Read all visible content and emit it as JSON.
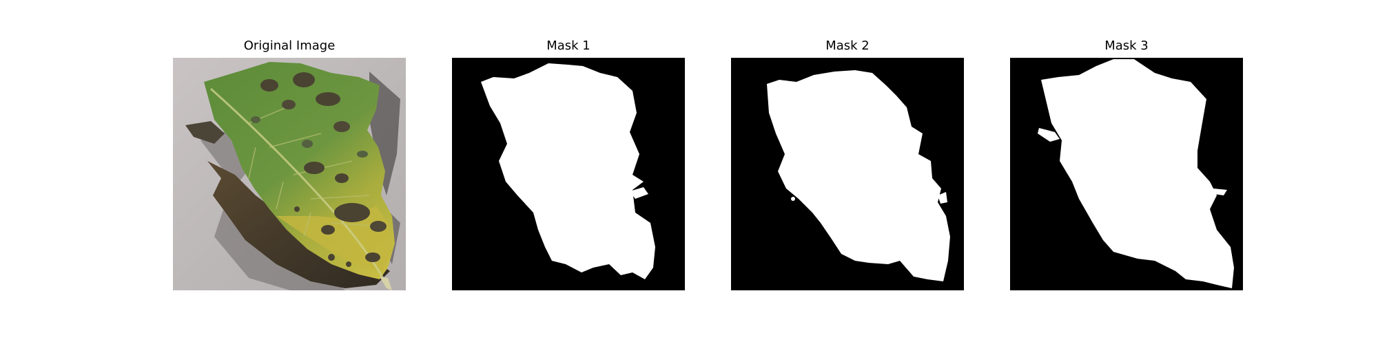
{
  "figure": {
    "panels": [
      {
        "title": "Original Image",
        "kind": "photo",
        "subject": "leaf-photo"
      },
      {
        "title": "Mask 1",
        "kind": "mask",
        "subject": "segmentation-mask"
      },
      {
        "title": "Mask 2",
        "kind": "mask",
        "subject": "segmentation-mask"
      },
      {
        "title": "Mask 3",
        "kind": "mask",
        "subject": "segmentation-mask"
      }
    ],
    "colors": {
      "background": "#ffffff",
      "mask_background": "#000000",
      "mask_foreground": "#ffffff",
      "leaf_green": "#4f7a32",
      "leaf_yellow": "#c9bd43",
      "leaf_spot": "#4a4332",
      "surface": "#bdb8b8"
    }
  }
}
